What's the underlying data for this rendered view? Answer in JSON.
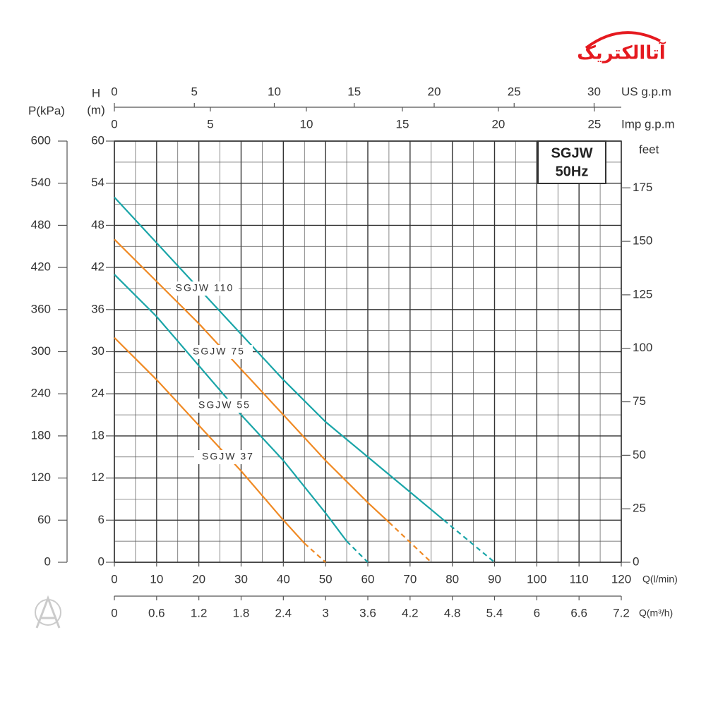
{
  "logo_text": "آتاالکتریک",
  "chart_data": {
    "type": "line",
    "title_lines": [
      "SGJW",
      "50Hz"
    ],
    "xlabel": "Q(l/min)",
    "xlim": [
      0,
      120
    ],
    "xticks": [
      0,
      10,
      20,
      30,
      40,
      50,
      60,
      70,
      80,
      90,
      100,
      110,
      120
    ],
    "ylabel_lines": [
      "H",
      "(m)"
    ],
    "ylim": [
      0,
      60
    ],
    "yticks": [
      0,
      6,
      12,
      18,
      24,
      30,
      36,
      42,
      48,
      54,
      60
    ],
    "y2label": "feet",
    "y2lim": [
      0,
      196.85
    ],
    "y2ticks": [
      0,
      25,
      50,
      75,
      100,
      125,
      150,
      175
    ],
    "extra_axes": {
      "pressure": {
        "label": "P(kPa)",
        "lim": [
          0,
          600
        ],
        "ticks": [
          0,
          60,
          120,
          180,
          240,
          300,
          360,
          420,
          480,
          540,
          600
        ]
      },
      "us_gpm": {
        "label": "US g.p.m",
        "lim": [
          0,
          31.7
        ],
        "ticks": [
          0,
          5,
          10,
          15,
          20,
          25,
          30
        ]
      },
      "imp_gpm": {
        "label": "Imp g.p.m",
        "lim": [
          0,
          26.4
        ],
        "ticks": [
          0,
          5,
          10,
          15,
          20,
          25
        ]
      },
      "m3h": {
        "label": "Q(m³/h)",
        "lim": [
          0,
          7.2
        ],
        "ticks": [
          0,
          0.6,
          1.2,
          1.8,
          2.4,
          3,
          3.6,
          4.2,
          4.8,
          5.4,
          6,
          6.6,
          7.2
        ]
      }
    },
    "grid": true,
    "dashed_tail": true,
    "series": [
      {
        "name": "SGJW 110",
        "color": "#1aa5a8",
        "x": [
          0,
          10,
          20,
          30,
          40,
          50,
          60,
          70,
          78,
          90
        ],
        "values": [
          52,
          45.5,
          39,
          32.5,
          26,
          20,
          15,
          10,
          6,
          0
        ]
      },
      {
        "name": "SGJW 75",
        "color": "#f08a24",
        "x": [
          0,
          10,
          20,
          30,
          40,
          50,
          60,
          65,
          75
        ],
        "values": [
          46,
          40,
          34,
          27.5,
          21,
          14.5,
          8.5,
          5.7,
          0
        ]
      },
      {
        "name": "SGJW 55",
        "color": "#1aa5a8",
        "x": [
          0,
          10,
          20,
          30,
          40,
          50,
          55,
          60
        ],
        "values": [
          41,
          35,
          28,
          21,
          14.5,
          7,
          3,
          0
        ]
      },
      {
        "name": "SGJW 37",
        "color": "#f08a24",
        "x": [
          0,
          10,
          20,
          30,
          40,
          45,
          50
        ],
        "values": [
          32,
          26,
          19.5,
          13,
          6,
          2.7,
          0
        ]
      }
    ]
  }
}
